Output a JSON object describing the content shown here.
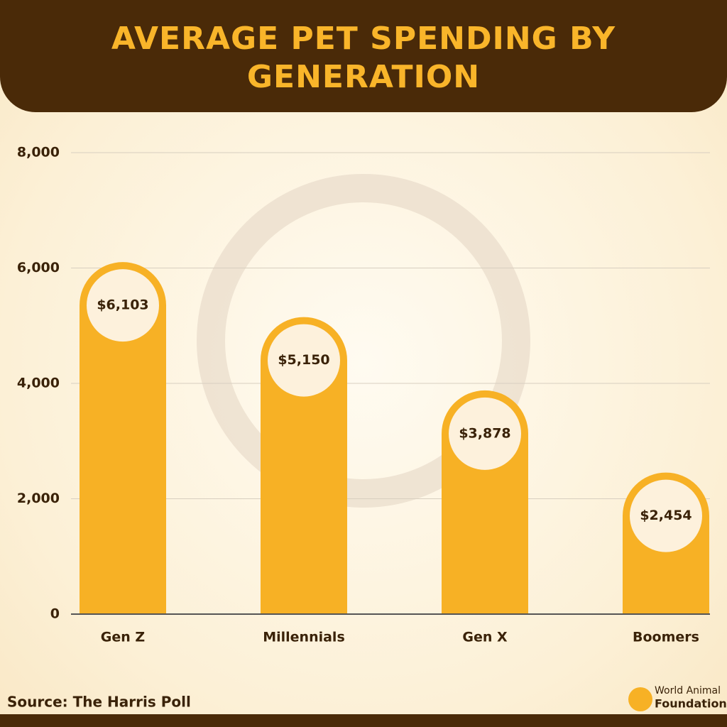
{
  "chart_data": {
    "type": "bar",
    "title": "AVERAGE PET SPENDING BY GENERATION",
    "categories": [
      "Gen Z",
      "Millennials",
      "Gen X",
      "Boomers"
    ],
    "values": [
      6103,
      5150,
      3878,
      2454
    ],
    "value_labels": [
      "$6,103",
      "$5,150",
      "$3,878",
      "$2,454"
    ],
    "color": "#f7b125",
    "ylim": [
      0,
      8000
    ],
    "yticks": [
      0,
      {
        "value": 2000,
        "label": "2,000"
      },
      {
        "value": 4000,
        "label": "4,000"
      },
      {
        "value": 6000,
        "label": "6,000"
      },
      {
        "value": 8000,
        "label": "8,000"
      }
    ],
    "grid": true,
    "source": "Source: The Harris Poll",
    "logo": {
      "line1": "World Animal",
      "line2": "Foundation"
    }
  }
}
